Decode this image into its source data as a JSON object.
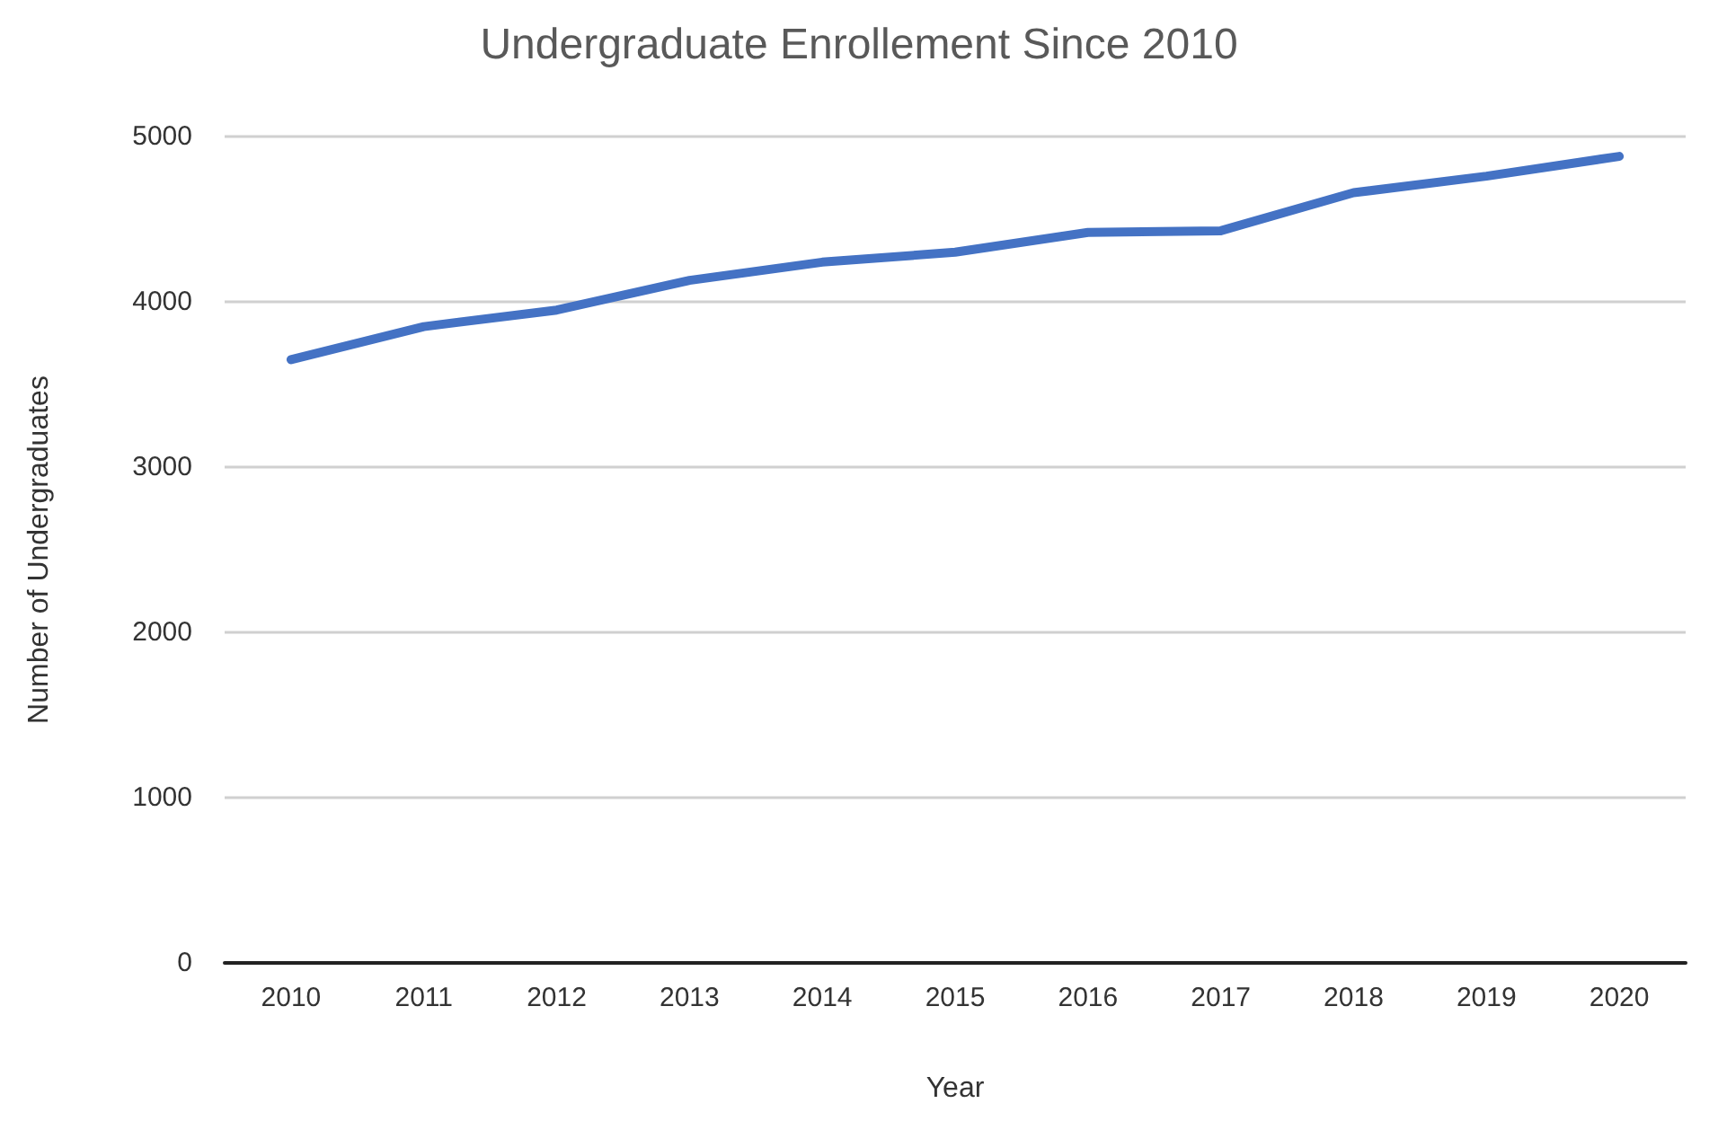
{
  "chart_data": {
    "type": "line",
    "title": "Undergraduate Enrollement Since 2010",
    "xlabel": "Year",
    "ylabel": "Number of Undergraduates",
    "categories": [
      "2010",
      "2011",
      "2012",
      "2013",
      "2014",
      "2015",
      "2016",
      "2017",
      "2018",
      "2019",
      "2020"
    ],
    "series": [
      {
        "color": "#4472c4",
        "values": [
          3650,
          3850,
          3950,
          4130,
          4240,
          4300,
          4420,
          4430,
          4660,
          4760,
          4880
        ]
      }
    ],
    "ylim": [
      0,
      5000
    ],
    "yticks": [
      0,
      1000,
      2000,
      3000,
      4000,
      5000
    ],
    "grid": "y",
    "marker": "none",
    "line_style": "solid"
  }
}
